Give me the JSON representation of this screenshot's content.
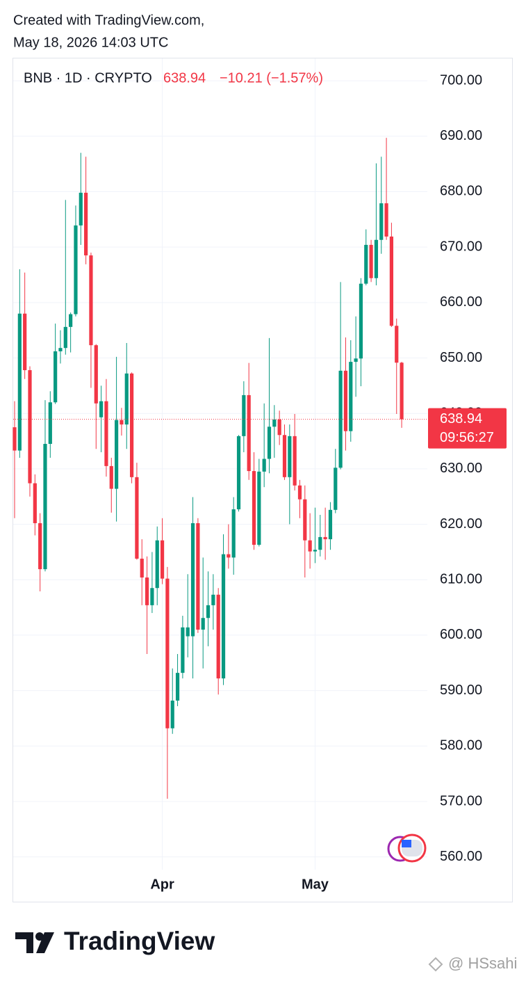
{
  "header": {
    "created": "Created with TradingView.com,",
    "timestamp": "May 18, 2026 14:03 UTC"
  },
  "chart_data": {
    "type": "candlestick",
    "symbol": "BNB · 1D · CRYPTO",
    "last_value": 638.94,
    "change": "−10.21 (−1.57%)",
    "countdown": "09:56:27",
    "up_color": "#089981",
    "down_color": "#f23645",
    "grid": true,
    "categories": [
      null,
      null,
      null,
      null,
      null,
      null,
      null,
      null,
      null,
      null,
      null,
      null,
      null,
      null,
      null,
      null,
      null,
      null,
      null,
      null,
      null,
      null,
      null,
      null,
      null,
      null,
      null,
      null,
      null,
      "Apr",
      null,
      null,
      null,
      null,
      null,
      null,
      null,
      null,
      null,
      null,
      null,
      null,
      null,
      null,
      null,
      null,
      null,
      null,
      null,
      null,
      null,
      null,
      null,
      null,
      null,
      null,
      null,
      null,
      null,
      "May",
      null,
      null,
      null,
      null,
      null,
      null,
      null,
      null,
      null,
      null,
      null,
      null,
      null,
      null,
      null,
      null,
      null
    ],
    "open": [
      637.5,
      633.3,
      658,
      647.8,
      627.4,
      620.2,
      611.9,
      634.5,
      642,
      651.2,
      651.8,
      655.6,
      657.9,
      673.9,
      679.8,
      668.5,
      652.3,
      639.3,
      642.2,
      630.5,
      626.4,
      638.8,
      638,
      647.2,
      628.5,
      613.8,
      610.4,
      605.4,
      608.5,
      617.1,
      610.2,
      583.2,
      588.2,
      593.2,
      599.8,
      599.8,
      620.2,
      601,
      603.1,
      605.4,
      607.3,
      592.2,
      614.6,
      614,
      622.7,
      635.9,
      643.3,
      629.6,
      616.3,
      629.5,
      631.8,
      637.6,
      638.9,
      636.1,
      628.5,
      635.9,
      627,
      624.5,
      617.1,
      615.1,
      615.4,
      617.7,
      617.3,
      622.6,
      630.2,
      647.7,
      636.8,
      649.3,
      649.9,
      663.4,
      670.4,
      664.4,
      671.3,
      677.9,
      671.9,
      655.8,
      649.15
    ],
    "high": [
      642.2,
      666,
      665.4,
      648.5,
      629,
      622,
      642.4,
      644,
      656.2,
      655,
      678.5,
      658.2,
      677.5,
      687,
      686.3,
      669,
      652.5,
      645,
      646.2,
      632,
      650.2,
      641,
      652.7,
      647.4,
      631.1,
      617.3,
      614.2,
      615,
      619.6,
      621.1,
      612.3,
      594,
      596.6,
      603.5,
      611,
      624.9,
      621.1,
      614,
      611.5,
      611,
      608.5,
      618.2,
      620,
      624.9,
      636.1,
      645.8,
      649.1,
      633,
      631.8,
      641.8,
      653.6,
      641.5,
      640.5,
      638,
      638,
      639.9,
      628,
      627,
      622,
      623,
      621.7,
      623,
      624,
      633.6,
      663.7,
      653.7,
      653.2,
      657.5,
      664.4,
      673.2,
      671.3,
      685.1,
      686.3,
      689.7,
      674.4,
      657.1,
      649.3
    ],
    "low": [
      621.1,
      632,
      646.2,
      625,
      618,
      607.9,
      611.5,
      632,
      641.7,
      649,
      650.6,
      651,
      657.5,
      670.4,
      666.9,
      644.6,
      633.6,
      633,
      628.6,
      622.1,
      620.5,
      636,
      633.6,
      627.4,
      613.6,
      605.4,
      596.6,
      604,
      605.4,
      609.2,
      570.5,
      582.2,
      587.2,
      592.2,
      596,
      592.2,
      600.4,
      594,
      598,
      601,
      589.3,
      591,
      612,
      610.9,
      622.3,
      633,
      628,
      615.4,
      616,
      626.7,
      629.2,
      632,
      634.3,
      628,
      620,
      626.1,
      621.1,
      610.4,
      612,
      613,
      614.2,
      613.6,
      615.4,
      622,
      629.9,
      633.3,
      634.9,
      643,
      644.9,
      663.1,
      663.7,
      663.1,
      668.8,
      671.3,
      655.6,
      639.9,
      637.4
    ],
    "close": [
      633.3,
      658,
      647.8,
      627.4,
      620.2,
      611.9,
      634.5,
      642,
      651.2,
      651.8,
      655.6,
      657.9,
      673.9,
      679.8,
      668.5,
      652.3,
      641.8,
      642.2,
      630.5,
      626.4,
      638.8,
      638,
      647.2,
      628.5,
      613.8,
      610.4,
      605.4,
      608.5,
      617.1,
      610.2,
      583.2,
      588.2,
      593.2,
      601.4,
      601.4,
      620.2,
      601,
      603.1,
      605.4,
      607.3,
      592.2,
      614.6,
      614,
      622.7,
      635.9,
      643.3,
      629.6,
      616.3,
      629.5,
      631.8,
      637.6,
      638.9,
      636.1,
      628.5,
      635.9,
      627,
      624.5,
      617.1,
      615.1,
      615.4,
      617.7,
      617.3,
      622.6,
      630.2,
      647.7,
      636.8,
      649.3,
      649.9,
      663.4,
      670.4,
      664.4,
      671.3,
      677.9,
      671.9,
      655.8,
      649.15,
      638.94
    ],
    "ylim": [
      557.7,
      703.9
    ],
    "yticks": [
      {
        "value": 560,
        "label": "560.00"
      },
      {
        "value": 570,
        "label": "570.00"
      },
      {
        "value": 580,
        "label": "580.00"
      },
      {
        "value": 590,
        "label": "590.00"
      },
      {
        "value": 600,
        "label": "600.00"
      },
      {
        "value": 610,
        "label": "610.00"
      },
      {
        "value": 620,
        "label": "620.00"
      },
      {
        "value": 630,
        "label": "630.00"
      },
      {
        "value": 640,
        "label": "640.00"
      },
      {
        "value": 650,
        "label": "650.00"
      },
      {
        "value": 660,
        "label": "660.00"
      },
      {
        "value": 670,
        "label": "670.00"
      },
      {
        "value": 680,
        "label": "680.00"
      },
      {
        "value": 690,
        "label": "690.00"
      },
      {
        "value": 700,
        "label": "700.00"
      }
    ]
  },
  "footer": {
    "brand": "TradingView",
    "watermark": "@ HSsahi"
  }
}
